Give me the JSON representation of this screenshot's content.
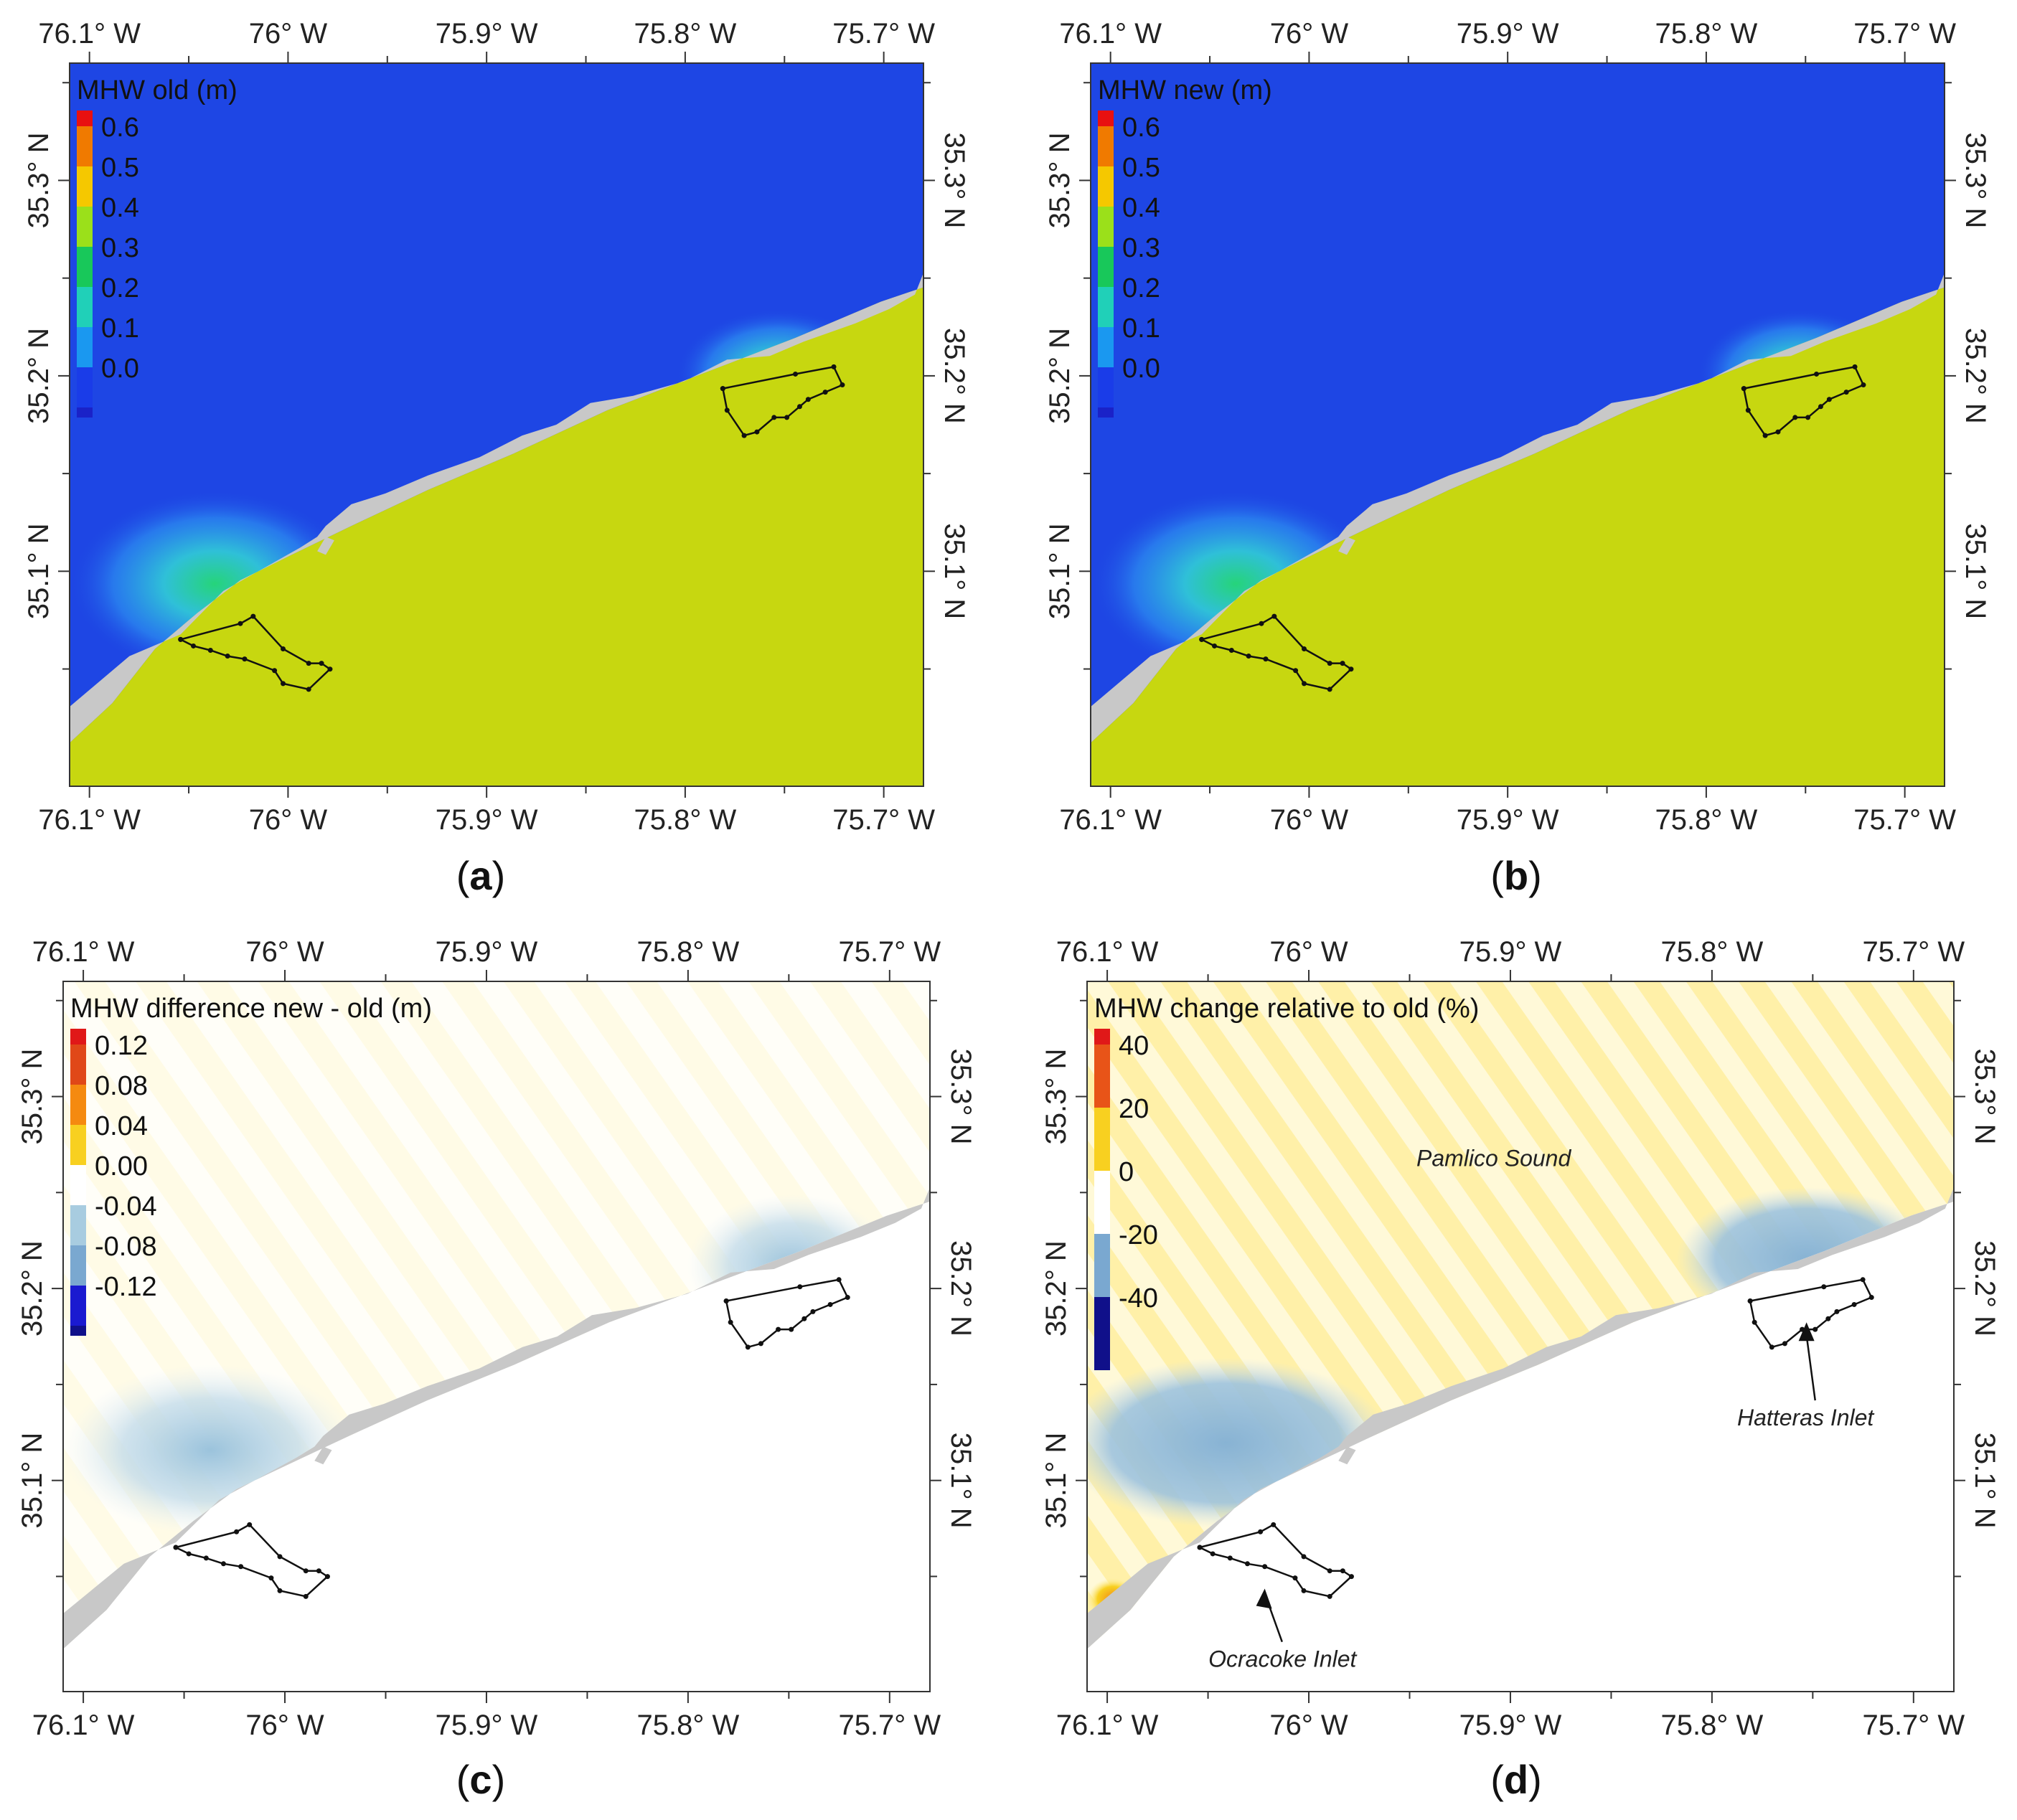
{
  "figure_description_free": true,
  "axes": {
    "lon_ticks": [
      "76.1° W",
      "76° W",
      "75.9° W",
      "75.8° W",
      "75.7° W"
    ],
    "lat_ticks": [
      "35.3° N",
      "35.2° N",
      "35.1° N"
    ],
    "lon_range": [
      -76.11,
      -75.68
    ],
    "lat_range": [
      34.99,
      35.36
    ],
    "lon_tick_values": [
      -76.1,
      -76.0,
      -75.9,
      -75.8,
      -75.7
    ],
    "lat_tick_values": [
      35.3,
      35.2,
      35.1
    ]
  },
  "panels": [
    {
      "id": "a",
      "caption": "a",
      "kind": "absolute",
      "legend_title": "MHW old (m)",
      "legend": [
        {
          "label": "0.6",
          "color": "#f07a00"
        },
        {
          "label": "0.5",
          "color": "#f5c800"
        },
        {
          "label": "0.4",
          "color": "#9be01a"
        },
        {
          "label": "0.3",
          "color": "#18c85a"
        },
        {
          "label": "0.2",
          "color": "#20d0b8"
        },
        {
          "label": "0.1",
          "color": "#1a98f0"
        },
        {
          "label": "0.0",
          "color": "#1a3ce8"
        }
      ],
      "legend_top_color": "#e81010",
      "legend_bottom_color": "#1a22c8",
      "annotations": []
    },
    {
      "id": "b",
      "caption": "b",
      "kind": "absolute",
      "legend_title": "MHW new (m)",
      "legend": [
        {
          "label": "0.6",
          "color": "#f07a00"
        },
        {
          "label": "0.5",
          "color": "#f5c800"
        },
        {
          "label": "0.4",
          "color": "#9be01a"
        },
        {
          "label": "0.3",
          "color": "#18c85a"
        },
        {
          "label": "0.2",
          "color": "#20d0b8"
        },
        {
          "label": "0.1",
          "color": "#1a98f0"
        },
        {
          "label": "0.0",
          "color": "#1a3ce8"
        }
      ],
      "legend_top_color": "#e81010",
      "legend_bottom_color": "#1a22c8",
      "annotations": []
    },
    {
      "id": "c",
      "caption": "c",
      "kind": "difference",
      "legend_title": "MHW difference new - old (m)",
      "legend": [
        {
          "label": "0.12",
          "color": "#e04818"
        },
        {
          "label": "0.08",
          "color": "#f58a10"
        },
        {
          "label": "0.04",
          "color": "#f8d020"
        },
        {
          "label": "0.00",
          "color": "#ffffff"
        },
        {
          "label": "-0.04",
          "color": "#a8cce0"
        },
        {
          "label": "-0.08",
          "color": "#7aa8d0"
        },
        {
          "label": "-0.12",
          "color": "#1a1ad0"
        }
      ],
      "legend_top_color": "#e01818",
      "legend_bottom_color": "#10108a",
      "annotations": []
    },
    {
      "id": "d",
      "caption": "d",
      "kind": "percent",
      "legend_title": "MHW change relative to old (%)",
      "legend": [
        {
          "label": "40",
          "color": "#e85418"
        },
        {
          "label": "20",
          "color": "#f8d020"
        },
        {
          "label": "0",
          "color": "#ffffff"
        },
        {
          "label": "-20",
          "color": "#7aa8d0"
        },
        {
          "label": "-40",
          "color": "#10108a"
        }
      ],
      "legend_top_color": "#e01818",
      "legend_bottom_color": "#10108a",
      "annotations": [
        {
          "text": "Pamlico Sound",
          "kind": "label"
        },
        {
          "text": "Hatteras Inlet",
          "kind": "arrow"
        },
        {
          "text": "Ocracoke Inlet",
          "kind": "arrow"
        }
      ]
    }
  ],
  "colors": {
    "ocean": "#c7d710",
    "land": "#c8c8c8",
    "sound_absolute": "#1e46e4",
    "sound_difference": "#fffdf2",
    "polygon": "#111111"
  }
}
